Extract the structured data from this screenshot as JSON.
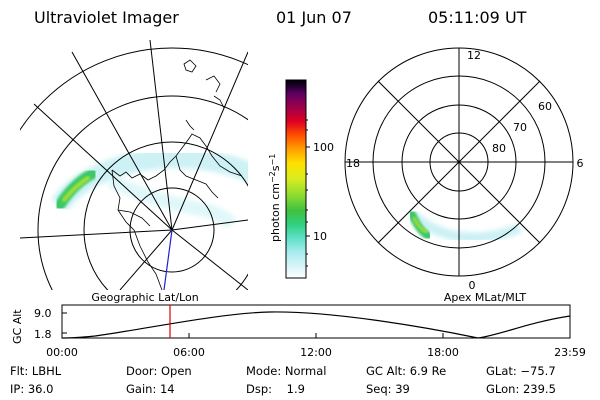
{
  "header": {
    "title": "Ultraviolet Imager",
    "date": "01 Jun 07",
    "time": "05:11:09 UT"
  },
  "geo_panel": {
    "caption": "Geographic Lat/Lon"
  },
  "apex_panel": {
    "caption": "Apex MLat/MLT",
    "mlt_labels": [
      "12",
      "18",
      "6",
      "0"
    ],
    "lat_labels": [
      "60",
      "70",
      "80"
    ]
  },
  "colorbar": {
    "unit_main": "photon cm",
    "unit_exp1": "−2",
    "unit_s": "s",
    "unit_exp2": "−1",
    "tick_labels": [
      "100",
      "10"
    ],
    "tick_values": [
      100,
      10
    ],
    "range": [
      2,
      1000
    ],
    "scale": "log",
    "colors": [
      "#ffffff",
      "#d8f4f8",
      "#a8ecf0",
      "#60e0c8",
      "#30d080",
      "#40c040",
      "#90dc30",
      "#d8ec20",
      "#ffe000",
      "#ffa000",
      "#ff5000",
      "#e00020",
      "#a0004a",
      "#600060",
      "#200030",
      "#000000"
    ]
  },
  "altitude_plot": {
    "ylabel": "GC Alt",
    "y_ticks": [
      "9.0",
      "1.8"
    ],
    "x_ticks": [
      "00:00",
      "06:00",
      "12:00",
      "18:00",
      "23:59"
    ],
    "current_time_marker_color": "#e00000"
  },
  "footer": {
    "rows": [
      [
        "Flt: LBHL",
        "Door: Open",
        "Mode: Normal",
        "GC Alt: 6.9 Re",
        "GLat: −75.7"
      ],
      [
        "IP: 36.0",
        "Gain: 14",
        "Dsp:    1.9",
        "Seq: 39",
        "GLon: 239.5"
      ]
    ]
  }
}
